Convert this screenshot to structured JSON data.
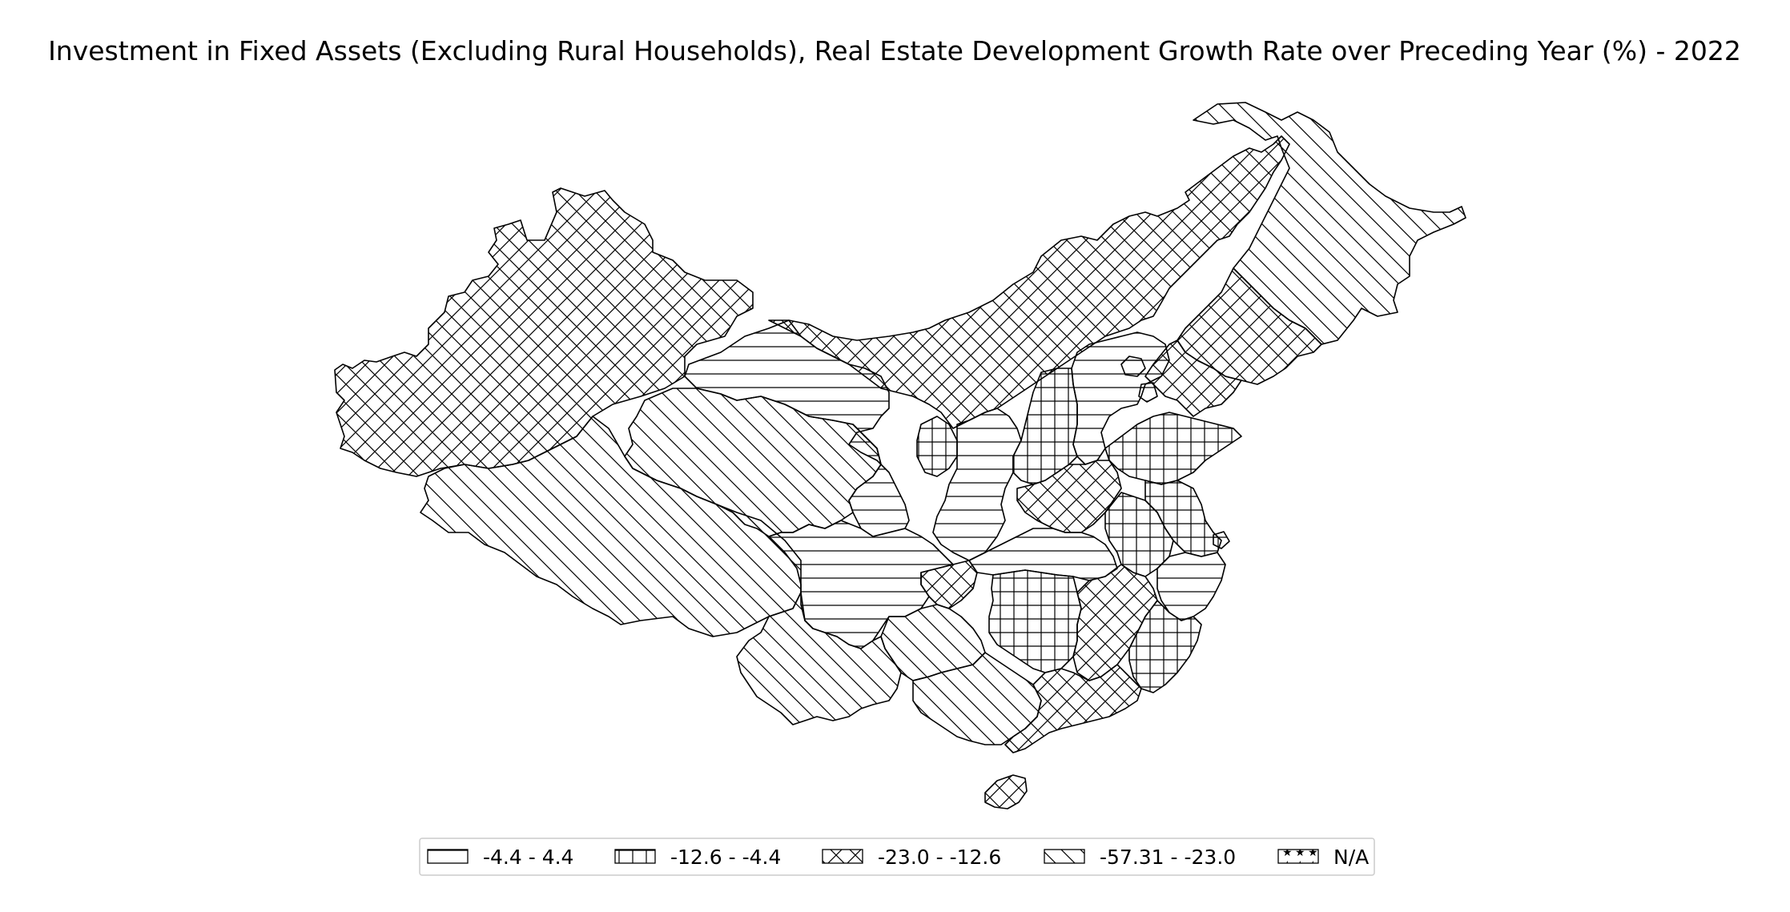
{
  "title": "Investment in Fixed Assets (Excluding Rural Households), Real Estate Development Growth Rate over Preceding Year (%) - 2022",
  "legend": [
    {
      "label": "-4.4 - 4.4",
      "pattern": "horizontal-lines"
    },
    {
      "label": "-12.6 - -4.4",
      "pattern": "grid"
    },
    {
      "label": "-23.0 - -12.6",
      "pattern": "cross-hatch"
    },
    {
      "label": "-57.31 - -23.0",
      "pattern": "diagonal"
    },
    {
      "label": "N/A",
      "pattern": "stars"
    }
  ],
  "colors": {
    "stroke": "#000000",
    "fill": "#ffffff"
  }
}
